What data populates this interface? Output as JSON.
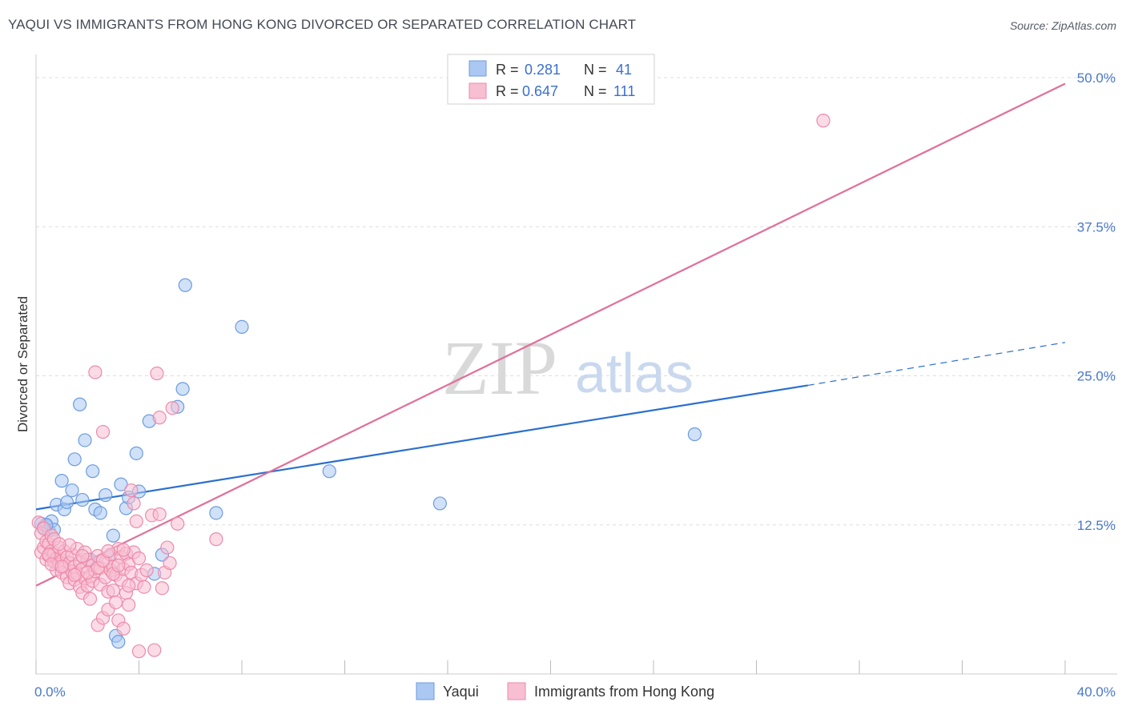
{
  "chart_data": {
    "type": "scatter",
    "title": "YAQUI VS IMMIGRANTS FROM HONG KONG DIVORCED OR SEPARATED CORRELATION CHART",
    "source": "Source: ZipAtlas.com",
    "ylabel": "Divorced or Separated",
    "xlabel": "",
    "xlim": [
      0,
      40
    ],
    "ylim": [
      0,
      50
    ],
    "x_ticks": [
      {
        "value": 0,
        "label": "0.0%"
      },
      {
        "value": 40,
        "label": "40.0%"
      }
    ],
    "y_ticks": [
      {
        "value": 12.5,
        "label": "12.5%"
      },
      {
        "value": 25.0,
        "label": "25.0%"
      },
      {
        "value": 37.5,
        "label": "37.5%"
      },
      {
        "value": 50.0,
        "label": "50.0%"
      }
    ],
    "legend": {
      "position": "top-center",
      "rows": [
        {
          "r_label": "R =",
          "r_value": "0.281",
          "n_label": "N =",
          "n_value": "41"
        },
        {
          "r_label": "R =",
          "r_value": "0.647",
          "n_label": "N =",
          "n_value": "111"
        }
      ]
    },
    "watermark": {
      "zip": "ZIP",
      "atlas": "atlas"
    },
    "series": [
      {
        "name": "Yaqui",
        "color": "#6c9be0",
        "fill": "#aac8f2",
        "line_color": "#2a6fce",
        "trend": {
          "x0": 0,
          "y0": 13.8,
          "x1": 30,
          "y1": 24.2,
          "dash_to_x": 40,
          "dash_to_y": 27.8
        },
        "points": [
          [
            0.2,
            12.6
          ],
          [
            0.3,
            12.3
          ],
          [
            0.4,
            12.4
          ],
          [
            0.5,
            12.0
          ],
          [
            0.6,
            12.8
          ],
          [
            0.7,
            12.1
          ],
          [
            0.8,
            14.2
          ],
          [
            1.0,
            16.2
          ],
          [
            1.1,
            13.8
          ],
          [
            1.2,
            14.4
          ],
          [
            1.4,
            15.4
          ],
          [
            1.5,
            18.0
          ],
          [
            1.7,
            22.6
          ],
          [
            1.8,
            14.6
          ],
          [
            1.9,
            19.6
          ],
          [
            2.1,
            9.6
          ],
          [
            2.2,
            17.0
          ],
          [
            2.3,
            13.8
          ],
          [
            2.5,
            13.5
          ],
          [
            2.7,
            15.0
          ],
          [
            2.9,
            10.0
          ],
          [
            3.0,
            11.6
          ],
          [
            3.1,
            3.2
          ],
          [
            3.2,
            2.7
          ],
          [
            3.3,
            15.9
          ],
          [
            3.5,
            13.9
          ],
          [
            3.6,
            14.8
          ],
          [
            3.9,
            18.5
          ],
          [
            4.0,
            15.3
          ],
          [
            4.4,
            21.2
          ],
          [
            4.6,
            8.4
          ],
          [
            4.9,
            10.0
          ],
          [
            5.5,
            22.4
          ],
          [
            5.7,
            23.9
          ],
          [
            5.8,
            32.6
          ],
          [
            7.0,
            13.5
          ],
          [
            8.0,
            29.1
          ],
          [
            11.4,
            17.0
          ],
          [
            15.7,
            14.3
          ],
          [
            25.6,
            20.1
          ],
          [
            0.4,
            12.5
          ]
        ]
      },
      {
        "name": "Immigrants from Hong Kong",
        "color": "#ee8aaa",
        "fill": "#f7bfd1",
        "line_color": "#e0709a",
        "trend": {
          "x0": 0,
          "y0": 7.4,
          "x1": 40,
          "y1": 49.5
        },
        "points": [
          [
            0.1,
            12.7
          ],
          [
            0.2,
            10.2
          ],
          [
            0.2,
            11.8
          ],
          [
            0.3,
            10.6
          ],
          [
            0.3,
            12.2
          ],
          [
            0.4,
            9.6
          ],
          [
            0.4,
            11.1
          ],
          [
            0.5,
            10.9
          ],
          [
            0.5,
            9.9
          ],
          [
            0.6,
            10.3
          ],
          [
            0.6,
            11.6
          ],
          [
            0.7,
            9.4
          ],
          [
            0.7,
            10.1
          ],
          [
            0.8,
            8.7
          ],
          [
            0.8,
            9.7
          ],
          [
            0.9,
            9.2
          ],
          [
            0.9,
            10.6
          ],
          [
            1.0,
            9.5
          ],
          [
            1.0,
            8.5
          ],
          [
            1.1,
            10.3
          ],
          [
            1.1,
            9.0
          ],
          [
            1.2,
            8.1
          ],
          [
            1.2,
            9.8
          ],
          [
            1.3,
            7.6
          ],
          [
            1.3,
            9.3
          ],
          [
            1.4,
            8.6
          ],
          [
            1.4,
            10.0
          ],
          [
            1.5,
            7.9
          ],
          [
            1.5,
            9.0
          ],
          [
            1.6,
            8.4
          ],
          [
            1.6,
            10.5
          ],
          [
            1.7,
            7.3
          ],
          [
            1.7,
            9.4
          ],
          [
            1.8,
            6.8
          ],
          [
            1.8,
            8.8
          ],
          [
            1.9,
            10.2
          ],
          [
            1.9,
            8.0
          ],
          [
            2.0,
            9.6
          ],
          [
            2.0,
            7.4
          ],
          [
            2.1,
            8.2
          ],
          [
            2.1,
            6.3
          ],
          [
            2.2,
            9.1
          ],
          [
            2.2,
            7.8
          ],
          [
            2.3,
            8.6
          ],
          [
            2.3,
            25.3
          ],
          [
            2.4,
            4.1
          ],
          [
            2.4,
            9.9
          ],
          [
            2.5,
            7.5
          ],
          [
            2.5,
            8.9
          ],
          [
            2.6,
            20.3
          ],
          [
            2.6,
            4.7
          ],
          [
            2.7,
            8.1
          ],
          [
            2.7,
            9.4
          ],
          [
            2.8,
            6.9
          ],
          [
            2.8,
            5.4
          ],
          [
            2.9,
            8.7
          ],
          [
            2.9,
            10.0
          ],
          [
            3.0,
            7.0
          ],
          [
            3.0,
            9.0
          ],
          [
            3.1,
            8.3
          ],
          [
            3.1,
            6.0
          ],
          [
            3.2,
            10.5
          ],
          [
            3.2,
            4.5
          ],
          [
            3.3,
            9.8
          ],
          [
            3.3,
            7.9
          ],
          [
            3.4,
            3.8
          ],
          [
            3.4,
            8.8
          ],
          [
            3.5,
            10.1
          ],
          [
            3.5,
            6.8
          ],
          [
            3.6,
            9.2
          ],
          [
            3.6,
            5.8
          ],
          [
            3.7,
            15.4
          ],
          [
            3.7,
            8.5
          ],
          [
            3.8,
            10.2
          ],
          [
            3.8,
            14.3
          ],
          [
            3.9,
            7.6
          ],
          [
            3.9,
            12.8
          ],
          [
            4.0,
            1.9
          ],
          [
            4.0,
            9.7
          ],
          [
            4.1,
            8.3
          ],
          [
            4.2,
            7.3
          ],
          [
            4.3,
            8.7
          ],
          [
            4.5,
            13.3
          ],
          [
            4.6,
            2.0
          ],
          [
            4.7,
            25.2
          ],
          [
            4.8,
            21.5
          ],
          [
            4.8,
            13.4
          ],
          [
            4.9,
            7.2
          ],
          [
            5.0,
            8.5
          ],
          [
            5.1,
            10.6
          ],
          [
            5.2,
            9.3
          ],
          [
            5.3,
            22.3
          ],
          [
            5.5,
            12.6
          ],
          [
            7.0,
            11.3
          ],
          [
            30.6,
            46.4
          ],
          [
            0.5,
            10.0
          ],
          [
            0.6,
            9.2
          ],
          [
            0.7,
            11.3
          ],
          [
            1.0,
            9.0
          ],
          [
            1.3,
            10.8
          ],
          [
            1.5,
            8.3
          ],
          [
            1.8,
            9.9
          ],
          [
            2.0,
            8.5
          ],
          [
            2.4,
            8.9
          ],
          [
            2.6,
            9.5
          ],
          [
            2.8,
            10.3
          ],
          [
            3.0,
            8.4
          ],
          [
            3.2,
            9.1
          ],
          [
            3.4,
            10.4
          ],
          [
            3.6,
            7.4
          ],
          [
            0.9,
            10.9
          ]
        ]
      }
    ]
  }
}
